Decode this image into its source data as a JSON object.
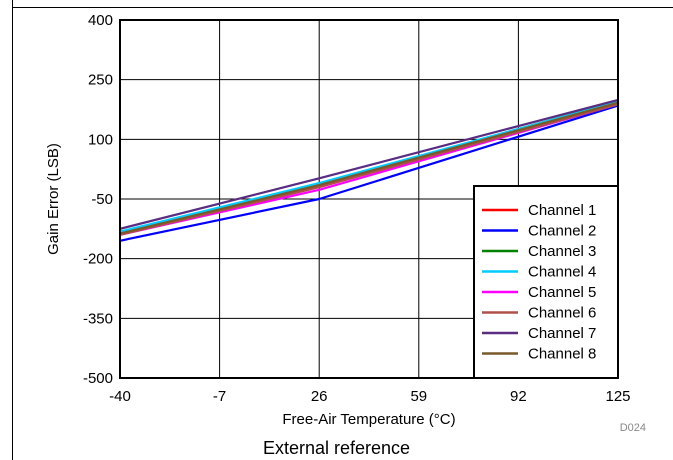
{
  "chart_data": {
    "type": "line",
    "xlabel": "Free-Air Temperature (°C)",
    "ylabel": "Gain Error (LSB)",
    "x_ticks": [
      -40,
      -7,
      26,
      59,
      92,
      125
    ],
    "y_ticks": [
      400,
      250,
      100,
      -50,
      -200,
      -350,
      -500
    ],
    "xlim": [
      -40,
      125
    ],
    "ylim": [
      -500,
      400
    ],
    "grid": true,
    "legend_position": "bottom-right",
    "x": [
      -40,
      26,
      125
    ],
    "series": [
      {
        "name": "Channel 1",
        "color": "#ff0000",
        "values": [
          -140,
          -20,
          190
        ]
      },
      {
        "name": "Channel 2",
        "color": "#0000ff",
        "values": [
          -155,
          -50,
          185
        ]
      },
      {
        "name": "Channel 3",
        "color": "#008000",
        "values": [
          -137,
          -12,
          195
        ]
      },
      {
        "name": "Channel 4",
        "color": "#00ccff",
        "values": [
          -132,
          -10,
          194
        ]
      },
      {
        "name": "Channel 5",
        "color": "#ff00ff",
        "values": [
          -140,
          -27,
          188
        ]
      },
      {
        "name": "Channel 6",
        "color": "#b0504a",
        "values": [
          -140,
          -20,
          188
        ]
      },
      {
        "name": "Channel 7",
        "color": "#5a2d82",
        "values": [
          -125,
          2,
          199
        ]
      },
      {
        "name": "Channel 8",
        "color": "#7a5a2a",
        "values": [
          -137,
          -15,
          192
        ]
      }
    ]
  },
  "figure_id": "D024",
  "caption": "External reference"
}
